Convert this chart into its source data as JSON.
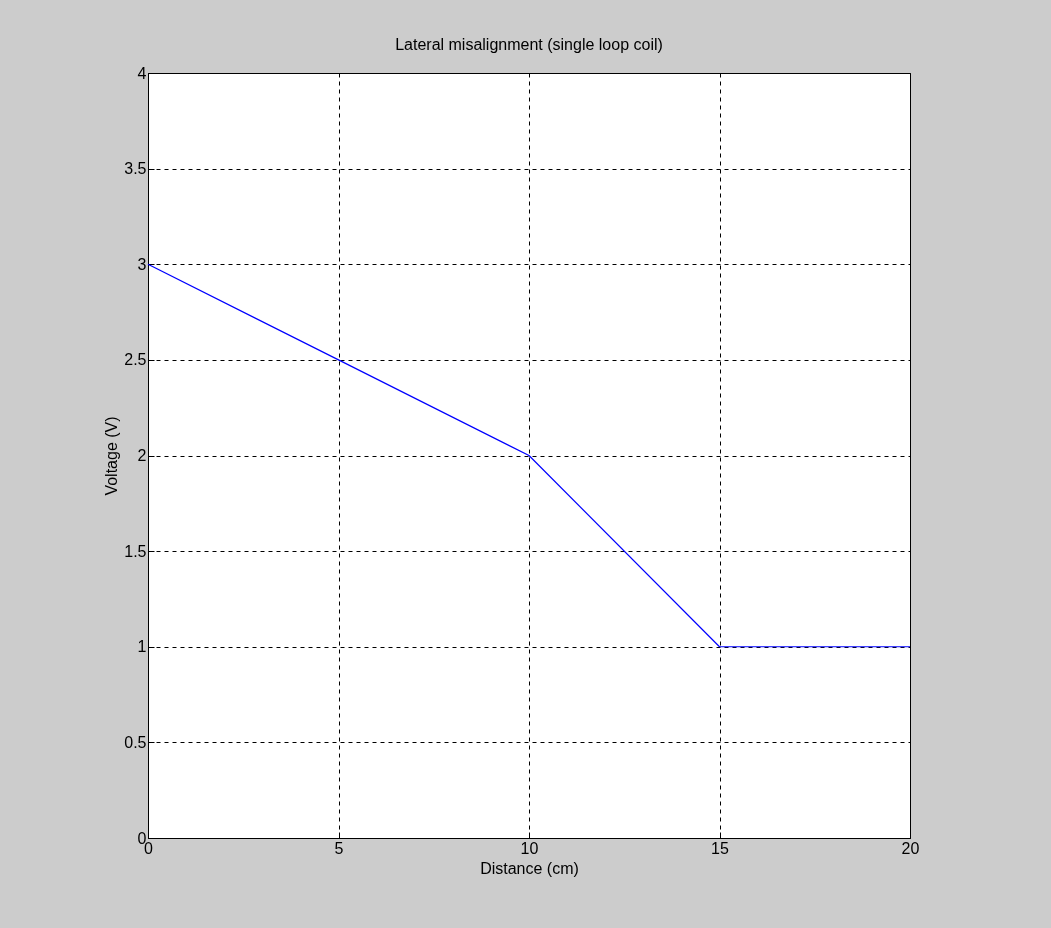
{
  "chart_data": {
    "type": "line",
    "title": "Lateral misalignment (single loop coil)",
    "xlabel": "Distance (cm)",
    "ylabel": "Voltage (V)",
    "x": [
      0,
      5,
      10,
      15,
      20
    ],
    "series": [
      {
        "color": "#0000ff",
        "values": [
          3,
          2.5,
          2,
          1,
          1
        ]
      }
    ],
    "xlim": [
      0,
      20
    ],
    "xticks": [
      0,
      5,
      10,
      15,
      20
    ],
    "ylim": [
      0,
      4
    ],
    "yticks": [
      0,
      0.5,
      1,
      1.5,
      2,
      2.5,
      3,
      3.5,
      4
    ],
    "grid": true,
    "marker": "none",
    "line_style": "solid"
  }
}
